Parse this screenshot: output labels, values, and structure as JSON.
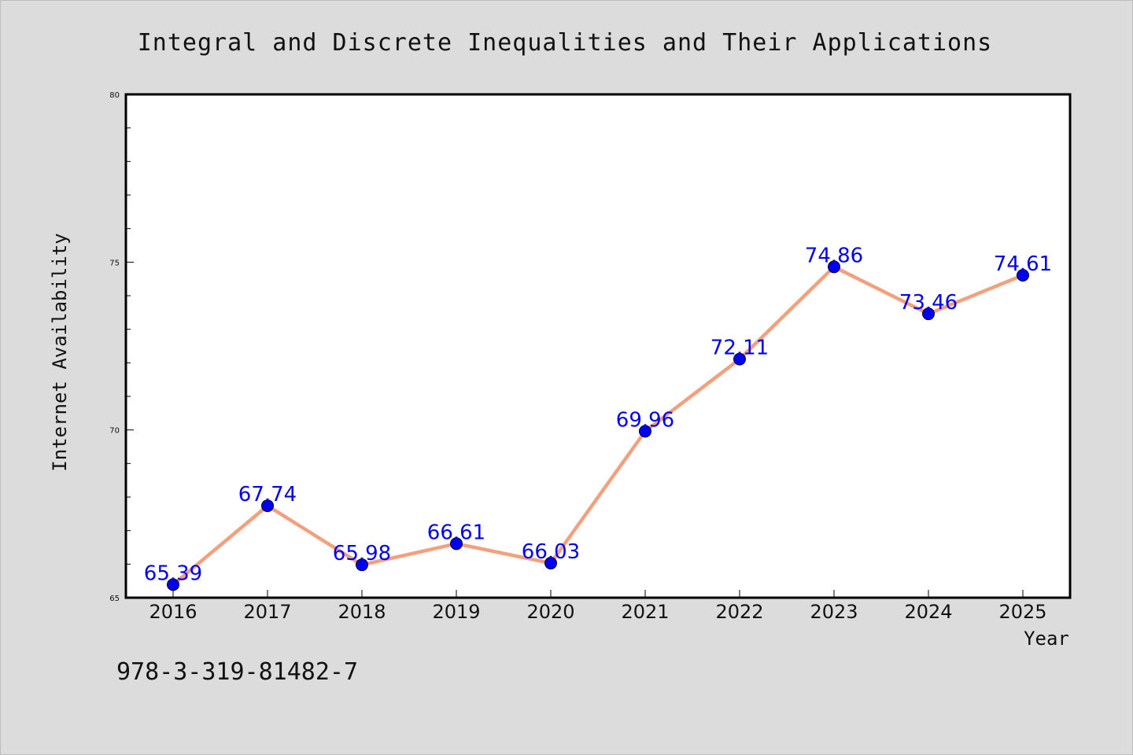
{
  "chart_data": {
    "type": "line",
    "title": "Integral and Discrete Inequalities and Their Applications",
    "xlabel": "Year",
    "ylabel": "Internet Availability",
    "x": [
      "2016",
      "2017",
      "2018",
      "2019",
      "2020",
      "2021",
      "2022",
      "2023",
      "2024",
      "2025"
    ],
    "series": [
      {
        "values": [
          65.39,
          67.74,
          65.98,
          66.61,
          66.03,
          69.96,
          72.11,
          74.86,
          73.46,
          74.61
        ],
        "labels": [
          "65.39",
          "67.74",
          "65.98",
          "66.61",
          "66.03",
          "69.96",
          "72.11",
          "74.86",
          "73.46",
          "74.61"
        ],
        "line_color": "#f4a07c",
        "marker_color": "#0000ee",
        "label_color": "#0000ee"
      }
    ],
    "ylim": [
      65,
      80
    ],
    "yticks_major": [
      65,
      70,
      75,
      80
    ],
    "yticks_major_labels": [
      "65",
      "70",
      "75",
      "80"
    ],
    "yticks_minor_step": 1,
    "grid": false,
    "legend": "none"
  },
  "footnote": "978-3-319-81482-7",
  "colors": {
    "background": "#dcdcdc",
    "plot_area": "#ffffff",
    "axes": "#000000"
  }
}
